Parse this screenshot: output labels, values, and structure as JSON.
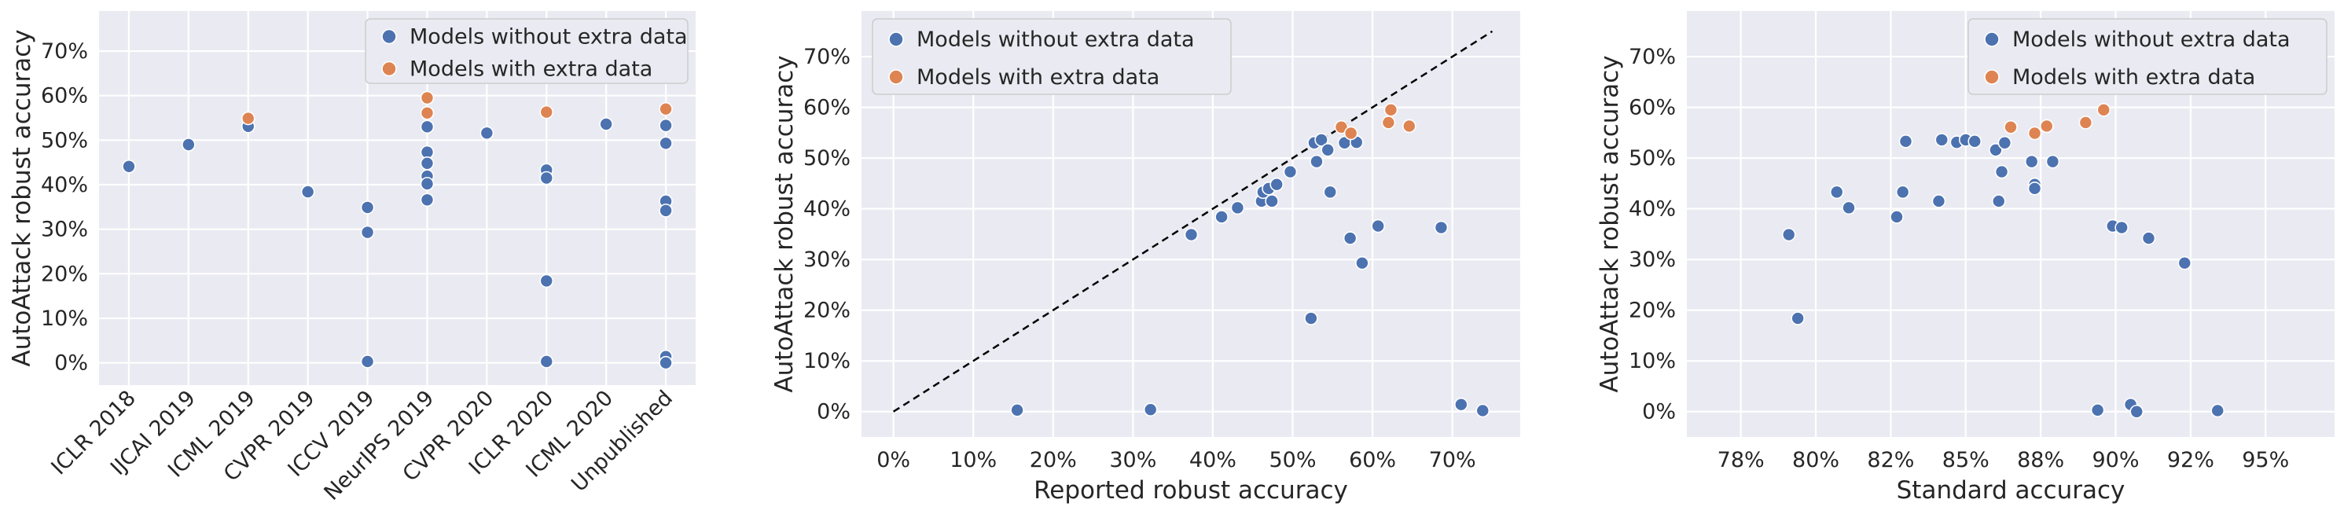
{
  "colors": {
    "without": "#4c72b0",
    "with": "#dd8452"
  },
  "legend": {
    "without": "Models without extra data",
    "with": "Models with extra data"
  },
  "chart_data": [
    {
      "type": "scatter",
      "xlabel": "",
      "ylabel": "AutoAttack robust accuracy",
      "x_categories": [
        "ICLR 2018",
        "IJCAI 2019",
        "ICML 2019",
        "CVPR 2019",
        "ICCV 2019",
        "NeurIPS 2019",
        "CVPR 2020",
        "ICLR 2020",
        "ICML 2020",
        "Unpublished"
      ],
      "ylim": [
        -0.05,
        0.79
      ],
      "yticks": [
        0,
        0.1,
        0.2,
        0.3,
        0.4,
        0.5,
        0.6,
        0.7
      ],
      "ytick_labels": [
        "0%",
        "10%",
        "20%",
        "30%",
        "40%",
        "50%",
        "60%",
        "70%"
      ],
      "grid": true,
      "legend_position": "top-right",
      "series": [
        {
          "key": "without",
          "points": [
            [
              "ICLR 2018",
              0.441
            ],
            [
              "IJCAI 2019",
              0.49
            ],
            [
              "ICML 2019",
              0.531
            ],
            [
              "CVPR 2019",
              0.384
            ],
            [
              "ICCV 2019",
              0.349
            ],
            [
              "ICCV 2019",
              0.293
            ],
            [
              "ICCV 2019",
              0.003
            ],
            [
              "NeurIPS 2019",
              0.53
            ],
            [
              "NeurIPS 2019",
              0.473
            ],
            [
              "NeurIPS 2019",
              0.448
            ],
            [
              "NeurIPS 2019",
              0.419
            ],
            [
              "NeurIPS 2019",
              0.402
            ],
            [
              "NeurIPS 2019",
              0.366
            ],
            [
              "CVPR 2020",
              0.516
            ],
            [
              "ICLR 2020",
              0.433
            ],
            [
              "ICLR 2020",
              0.415
            ],
            [
              "ICLR 2020",
              0.184
            ],
            [
              "ICLR 2020",
              0.003
            ],
            [
              "ICML 2020",
              0.536
            ],
            [
              "Unpublished",
              0.533
            ],
            [
              "Unpublished",
              0.493
            ],
            [
              "Unpublished",
              0.363
            ],
            [
              "Unpublished",
              0.342
            ],
            [
              "Unpublished",
              0.014
            ],
            [
              "Unpublished",
              0.0
            ]
          ]
        },
        {
          "key": "with",
          "points": [
            [
              "ICML 2019",
              0.549
            ],
            [
              "NeurIPS 2019",
              0.595
            ],
            [
              "NeurIPS 2019",
              0.561
            ],
            [
              "ICLR 2020",
              0.563
            ],
            [
              "Unpublished",
              0.57
            ]
          ]
        }
      ]
    },
    {
      "type": "scatter",
      "xlabel": "Reported robust accuracy",
      "ylabel": "AutoAttack robust accuracy",
      "xlim": [
        -0.04,
        0.785
      ],
      "ylim": [
        -0.05,
        0.79
      ],
      "xticks": [
        0,
        0.1,
        0.2,
        0.3,
        0.4,
        0.5,
        0.6,
        0.7
      ],
      "xtick_labels": [
        "0%",
        "10%",
        "20%",
        "30%",
        "40%",
        "50%",
        "60%",
        "70%"
      ],
      "yticks": [
        0,
        0.1,
        0.2,
        0.3,
        0.4,
        0.5,
        0.6,
        0.7
      ],
      "ytick_labels": [
        "0%",
        "10%",
        "20%",
        "30%",
        "40%",
        "50%",
        "60%",
        "70%"
      ],
      "grid": true,
      "legend_position": "top-left",
      "reference_line": [
        [
          0,
          0
        ],
        [
          0.75,
          0.75
        ]
      ],
      "series": [
        {
          "key": "without",
          "points": [
            [
              0.155,
              0.003
            ],
            [
              0.322,
              0.004
            ],
            [
              0.373,
              0.349
            ],
            [
              0.411,
              0.384
            ],
            [
              0.431,
              0.402
            ],
            [
              0.461,
              0.415
            ],
            [
              0.463,
              0.433
            ],
            [
              0.47,
              0.44
            ],
            [
              0.474,
              0.415
            ],
            [
              0.48,
              0.448
            ],
            [
              0.497,
              0.473
            ],
            [
              0.523,
              0.184
            ],
            [
              0.527,
              0.53
            ],
            [
              0.53,
              0.493
            ],
            [
              0.536,
              0.536
            ],
            [
              0.544,
              0.516
            ],
            [
              0.547,
              0.433
            ],
            [
              0.565,
              0.53
            ],
            [
              0.572,
              0.342
            ],
            [
              0.58,
              0.531
            ],
            [
              0.587,
              0.293
            ],
            [
              0.607,
              0.366
            ],
            [
              0.686,
              0.363
            ],
            [
              0.711,
              0.014
            ],
            [
              0.738,
              0.002
            ]
          ]
        },
        {
          "key": "with",
          "points": [
            [
              0.561,
              0.561
            ],
            [
              0.573,
              0.549
            ],
            [
              0.62,
              0.57
            ],
            [
              0.623,
              0.595
            ],
            [
              0.646,
              0.563
            ]
          ]
        }
      ]
    },
    {
      "type": "scatter",
      "xlabel": "Standard accuracy",
      "ylabel": "AutoAttack robust accuracy",
      "xlim": [
        0.757,
        0.973
      ],
      "ylim": [
        -0.05,
        0.79
      ],
      "xticks": [
        0.775,
        0.8,
        0.825,
        0.85,
        0.875,
        0.9,
        0.925,
        0.95
      ],
      "xtick_labels": [
        "78%",
        "80%",
        "82%",
        "85%",
        "88%",
        "90%",
        "92%",
        "95%"
      ],
      "yticks": [
        0,
        0.1,
        0.2,
        0.3,
        0.4,
        0.5,
        0.6,
        0.7
      ],
      "ytick_labels": [
        "0%",
        "10%",
        "20%",
        "30%",
        "40%",
        "50%",
        "60%",
        "70%"
      ],
      "grid": true,
      "legend_position": "top-right",
      "series": [
        {
          "key": "without",
          "points": [
            [
              0.791,
              0.349
            ],
            [
              0.794,
              0.184
            ],
            [
              0.807,
              0.433
            ],
            [
              0.811,
              0.402
            ],
            [
              0.827,
              0.384
            ],
            [
              0.829,
              0.433
            ],
            [
              0.83,
              0.533
            ],
            [
              0.841,
              0.415
            ],
            [
              0.842,
              0.536
            ],
            [
              0.847,
              0.531
            ],
            [
              0.85,
              0.536
            ],
            [
              0.853,
              0.533
            ],
            [
              0.86,
              0.516
            ],
            [
              0.861,
              0.415
            ],
            [
              0.862,
              0.473
            ],
            [
              0.863,
              0.53
            ],
            [
              0.872,
              0.493
            ],
            [
              0.873,
              0.448
            ],
            [
              0.873,
              0.44
            ],
            [
              0.879,
              0.493
            ],
            [
              0.894,
              0.003
            ],
            [
              0.899,
              0.366
            ],
            [
              0.902,
              0.363
            ],
            [
              0.905,
              0.014
            ],
            [
              0.907,
              0.0
            ],
            [
              0.911,
              0.342
            ],
            [
              0.923,
              0.293
            ],
            [
              0.934,
              0.002
            ]
          ]
        },
        {
          "key": "with",
          "points": [
            [
              0.865,
              0.561
            ],
            [
              0.873,
              0.549
            ],
            [
              0.877,
              0.563
            ],
            [
              0.89,
              0.57
            ],
            [
              0.896,
              0.595
            ]
          ]
        }
      ]
    }
  ]
}
